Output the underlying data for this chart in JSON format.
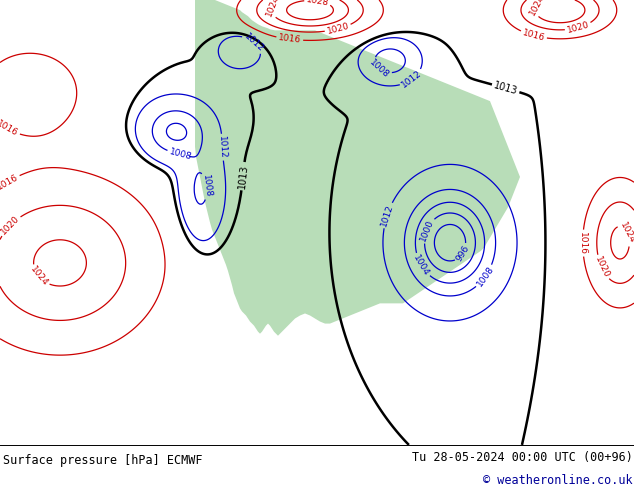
{
  "title_left": "Surface pressure [hPa] ECMWF",
  "title_right": "Tu 28-05-2024 00:00 UTC (00+96)",
  "copyright": "© weatheronline.co.uk",
  "ocean_color": "#d8d8d8",
  "land_color": "#b8ddb8",
  "contour_black": "#000000",
  "contour_blue": "#0000cc",
  "contour_red": "#cc0000",
  "footer_bg": "#ffffff",
  "footer_text": "#000000",
  "copyright_color": "#000099",
  "figsize": [
    6.34,
    4.9
  ],
  "dpi": 100
}
